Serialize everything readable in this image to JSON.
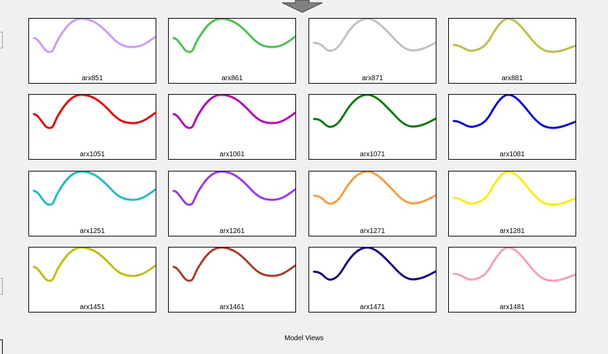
{
  "panel": {
    "title": "Model Views"
  },
  "tiles": [
    {
      "label": "arx851",
      "color": "#cc99ff",
      "curve": "a"
    },
    {
      "label": "arx861",
      "color": "#44c544",
      "curve": "a"
    },
    {
      "label": "arx871",
      "color": "#c0c0c0",
      "curve": "b"
    },
    {
      "label": "arx881",
      "color": "#bfbf3f",
      "curve": "c"
    },
    {
      "label": "arx1051",
      "color": "#ff0000",
      "curve": "a"
    },
    {
      "label": "arx1061",
      "color": "#bf00bf",
      "curve": "a"
    },
    {
      "label": "arx1071",
      "color": "#008000",
      "curve": "b"
    },
    {
      "label": "arx1081",
      "color": "#0000ff",
      "curve": "c"
    },
    {
      "label": "arx1251",
      "color": "#14c0c0",
      "curve": "a"
    },
    {
      "label": "arx1261",
      "color": "#9933ff",
      "curve": "a"
    },
    {
      "label": "arx1271",
      "color": "#ff9933",
      "curve": "b"
    },
    {
      "label": "arx1281",
      "color": "#ffee00",
      "curve": "c"
    },
    {
      "label": "arx1451",
      "color": "#bfbf00",
      "curve": "a"
    },
    {
      "label": "arx1461",
      "color": "#b3341f",
      "curve": "a"
    },
    {
      "label": "arx1471",
      "color": "#1a008a",
      "curve": "b"
    },
    {
      "label": "arx1481",
      "color": "#ff99bb",
      "curve": "c"
    }
  ]
}
